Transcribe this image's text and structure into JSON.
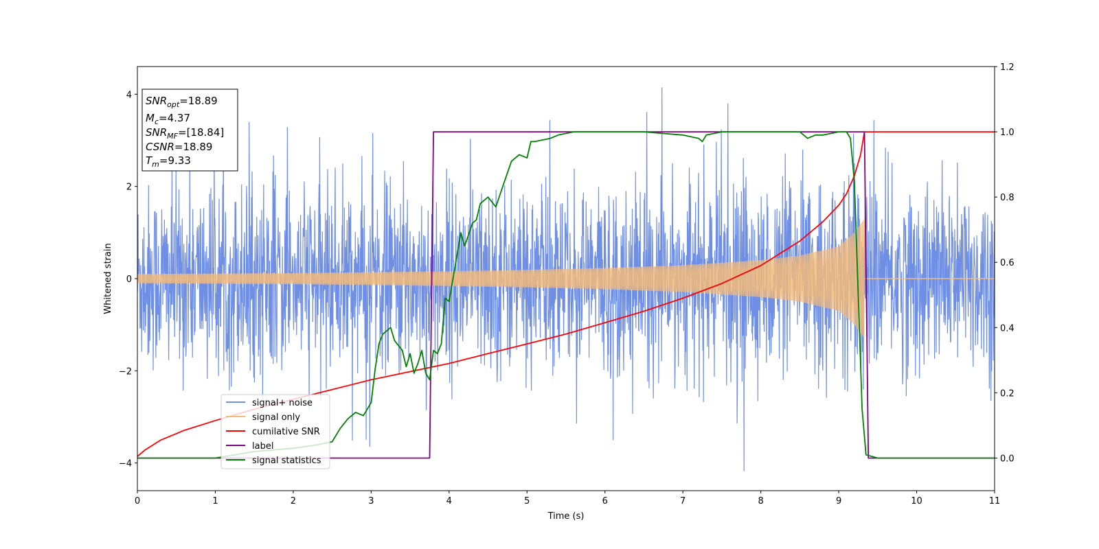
{
  "chart_data": {
    "type": "line",
    "xlabel": "Time (s)",
    "ylabel": "Whitened strain",
    "ylabel_right": "",
    "xlim": [
      0,
      11
    ],
    "ylim": [
      -4.6,
      4.6
    ],
    "ylim_right": [
      -0.1,
      1.2
    ],
    "x_ticks": [
      0,
      1,
      2,
      3,
      4,
      5,
      6,
      7,
      8,
      9,
      10,
      11
    ],
    "y_ticks": [
      -4,
      -2,
      0,
      2,
      4
    ],
    "y_ticks_right": [
      0.0,
      0.2,
      0.4,
      0.6,
      0.8,
      1.0,
      1.2
    ],
    "x_tick_labels": [
      "0",
      "1",
      "2",
      "3",
      "4",
      "5",
      "6",
      "7",
      "8",
      "9",
      "10",
      "11"
    ],
    "y_tick_labels": [
      "−4",
      "−2",
      "0",
      "2",
      "4"
    ],
    "y_tick_labels_right": [
      "0.0",
      "0.2",
      "0.4",
      "0.6",
      "0.8",
      "1.0",
      "1.2"
    ],
    "grid": false,
    "legend_position": "lower-left",
    "annotation": {
      "lines": [
        {
          "base": "SNR",
          "sub": "opt",
          "value": "=18.89"
        },
        {
          "base": "M",
          "sub": "c",
          "value": "=4.37"
        },
        {
          "base": "SNR",
          "sub": "MF",
          "value": "=[18.84]"
        },
        {
          "base": "CSNR",
          "sub": "",
          "value": "=18.89"
        },
        {
          "base": "T",
          "sub": "m",
          "value": "=9.33"
        }
      ]
    },
    "series": [
      {
        "name": "signal+ noise",
        "axis": "left",
        "color": "#6f8fe5",
        "kind": "noise",
        "band_std": 1.0,
        "peak_range": [
          -4.2,
          4.2
        ],
        "x_range": [
          0,
          11
        ]
      },
      {
        "name": "signal only",
        "axis": "left",
        "color": "#f3bb7a",
        "kind": "chirp",
        "x_range": [
          0,
          9.33
        ],
        "amplitude": {
          "x": [
            0,
            1,
            2,
            3,
            4,
            5,
            6,
            7,
            8,
            8.5,
            9.0,
            9.2,
            9.33
          ],
          "y": [
            0.1,
            0.11,
            0.12,
            0.14,
            0.16,
            0.19,
            0.23,
            0.29,
            0.4,
            0.5,
            0.7,
            1.0,
            1.3
          ]
        },
        "after_merger_value": 0.0
      },
      {
        "name": "cumilative SNR",
        "axis": "right",
        "color": "#ff0000",
        "x": [
          0,
          0.1,
          0.3,
          0.6,
          1,
          1.5,
          2,
          2.5,
          3,
          3.5,
          4,
          4.5,
          5,
          5.5,
          6,
          6.5,
          7,
          7.5,
          8,
          8.5,
          8.8,
          9.0,
          9.1,
          9.2,
          9.28,
          9.33,
          9.34,
          11
        ],
        "y": [
          0.005,
          0.025,
          0.055,
          0.085,
          0.115,
          0.15,
          0.18,
          0.21,
          0.24,
          0.265,
          0.29,
          0.32,
          0.35,
          0.38,
          0.415,
          0.45,
          0.49,
          0.535,
          0.59,
          0.665,
          0.725,
          0.775,
          0.81,
          0.865,
          0.93,
          1.0,
          1.0,
          1.0
        ]
      },
      {
        "name": "label",
        "axis": "right",
        "color": "#800080",
        "x": [
          0,
          3.75,
          3.8,
          9.33,
          9.38,
          11
        ],
        "y": [
          0.0,
          0.0,
          1.0,
          1.0,
          0.0,
          0.0
        ]
      },
      {
        "name": "signal statistics",
        "axis": "right",
        "color": "#008000",
        "x": [
          0,
          1.0,
          1.5,
          2.0,
          2.3,
          2.5,
          2.6,
          2.7,
          2.8,
          2.9,
          3.0,
          3.05,
          3.1,
          3.15,
          3.25,
          3.3,
          3.4,
          3.45,
          3.5,
          3.55,
          3.6,
          3.65,
          3.7,
          3.75,
          3.8,
          3.85,
          3.9,
          3.95,
          4.0,
          4.05,
          4.1,
          4.15,
          4.2,
          4.3,
          4.35,
          4.4,
          4.5,
          4.6,
          4.7,
          4.8,
          4.9,
          5.0,
          5.05,
          5.1,
          5.3,
          5.4,
          5.6,
          5.8,
          6.0,
          6.5,
          7.0,
          7.2,
          7.25,
          7.3,
          7.5,
          8.0,
          8.5,
          8.6,
          8.7,
          8.8,
          9.0,
          9.1,
          9.15,
          9.2,
          9.25,
          9.3,
          9.35,
          9.5,
          10,
          11
        ],
        "y": [
          0.0,
          0.0,
          0.02,
          0.03,
          0.04,
          0.05,
          0.09,
          0.12,
          0.14,
          0.13,
          0.17,
          0.27,
          0.35,
          0.38,
          0.4,
          0.36,
          0.33,
          0.28,
          0.32,
          0.26,
          0.29,
          0.33,
          0.26,
          0.24,
          0.33,
          0.32,
          0.35,
          0.49,
          0.48,
          0.55,
          0.62,
          0.69,
          0.65,
          0.72,
          0.73,
          0.78,
          0.8,
          0.77,
          0.84,
          0.91,
          0.93,
          0.92,
          0.97,
          0.97,
          0.98,
          0.99,
          1.0,
          1.0,
          1.0,
          1.0,
          0.99,
          0.98,
          0.97,
          0.99,
          1.0,
          1.0,
          1.0,
          0.98,
          0.99,
          0.99,
          1.0,
          1.0,
          0.98,
          0.85,
          0.5,
          0.15,
          0.01,
          0.0,
          0.0,
          0.0
        ]
      }
    ]
  }
}
